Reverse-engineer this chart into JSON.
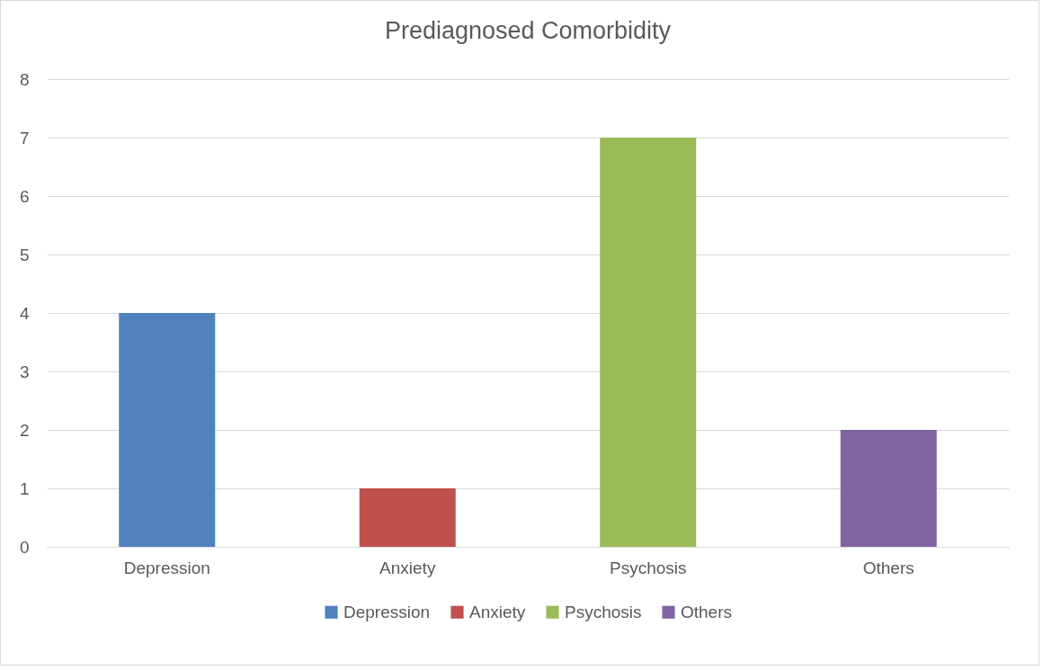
{
  "chart_data": {
    "type": "bar",
    "title": "Prediagnosed Comorbidity",
    "categories": [
      "Depression",
      "Anxiety",
      "Psychosis",
      "Others"
    ],
    "series": [
      {
        "name": "Depression",
        "color": "#4f81bd",
        "values": [
          4,
          null,
          null,
          null
        ]
      },
      {
        "name": "Anxiety",
        "color": "#c0504d",
        "values": [
          null,
          1,
          null,
          null
        ]
      },
      {
        "name": "Psychosis",
        "color": "#9bbb59",
        "values": [
          null,
          null,
          7,
          null
        ]
      },
      {
        "name": "Others",
        "color": "#8064a2",
        "values": [
          null,
          null,
          null,
          2
        ]
      }
    ],
    "stacked": true,
    "ylim": [
      0,
      8
    ],
    "yticks": [
      0,
      1,
      2,
      3,
      4,
      5,
      6,
      7,
      8
    ],
    "grid": "y",
    "legend": "bottom"
  }
}
